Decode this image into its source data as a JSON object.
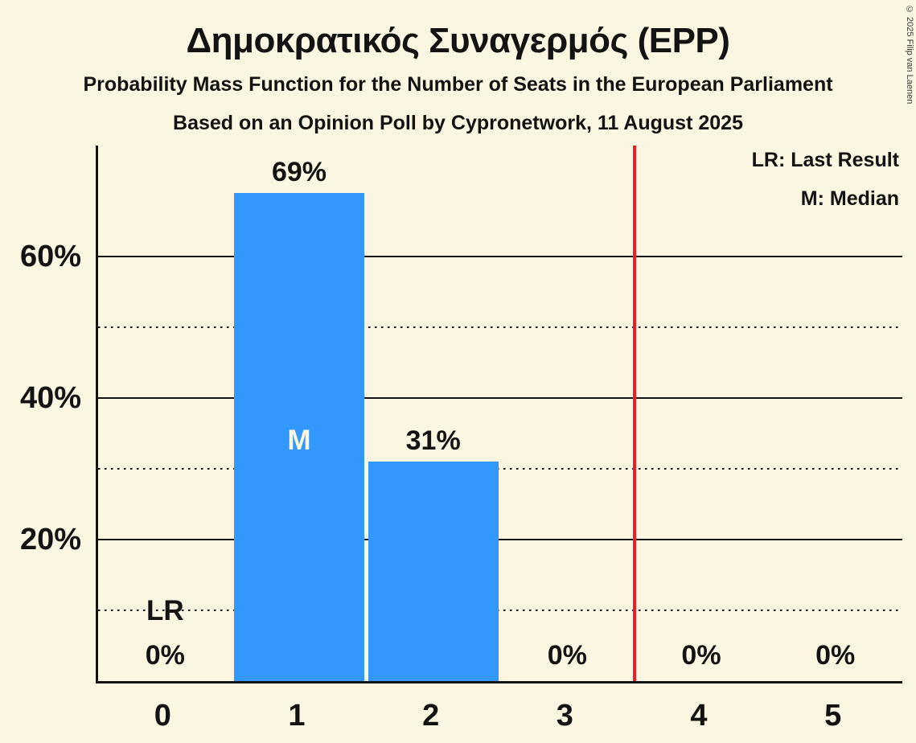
{
  "page": {
    "title": "Δημοκρατικός Συναγερμός (EPP)",
    "subtitle": "Probability Mass Function for the Number of Seats in the European Parliament",
    "subsubtitle": "Based on an Opinion Poll by Cypronetwork, 11 August 2025",
    "copyright": "© 2025 Filip van Laenen"
  },
  "legend": {
    "items": [
      "LR: Last Result",
      "M: Median"
    ]
  },
  "colors": {
    "background": "#fbf6e1",
    "bar": "#3398fb",
    "marker_inside_bar": "#fbf6e1",
    "grid_and_text": "#131313",
    "last_result_line": "#ee1c25"
  },
  "chart_data": {
    "type": "bar",
    "title": "Δημοκρατικός Συναγερμός (EPP)",
    "subtitle": "Probability Mass Function for the Number of Seats in the European Parliament",
    "source_line": "Based on an Opinion Poll by Cypronetwork, 11 August 2025",
    "categories": [
      "0",
      "1",
      "2",
      "3",
      "4",
      "5"
    ],
    "values": [
      0,
      69,
      31,
      0,
      0,
      0
    ],
    "bar_labels": [
      "0%",
      "69%",
      "31%",
      "0%",
      "0%",
      "0%"
    ],
    "median": {
      "category_index": 1,
      "marker": "M"
    },
    "last_result": {
      "category_index": 0,
      "marker": "LR"
    },
    "red_vertical_line_x": 3.5,
    "y_axis": {
      "unit": "percent",
      "ylim": [
        0,
        75.7
      ],
      "solid_gridlines": [
        20,
        40,
        60
      ],
      "dotted_gridlines": [
        10,
        30,
        50
      ],
      "tick_labels": [
        {
          "value": 20,
          "label": "20%"
        },
        {
          "value": 40,
          "label": "40%"
        },
        {
          "value": 60,
          "label": "60%"
        }
      ]
    },
    "legend_entries": [
      "LR: Last Result",
      "M: Median"
    ],
    "grid": true,
    "legend_position": "top-right"
  }
}
